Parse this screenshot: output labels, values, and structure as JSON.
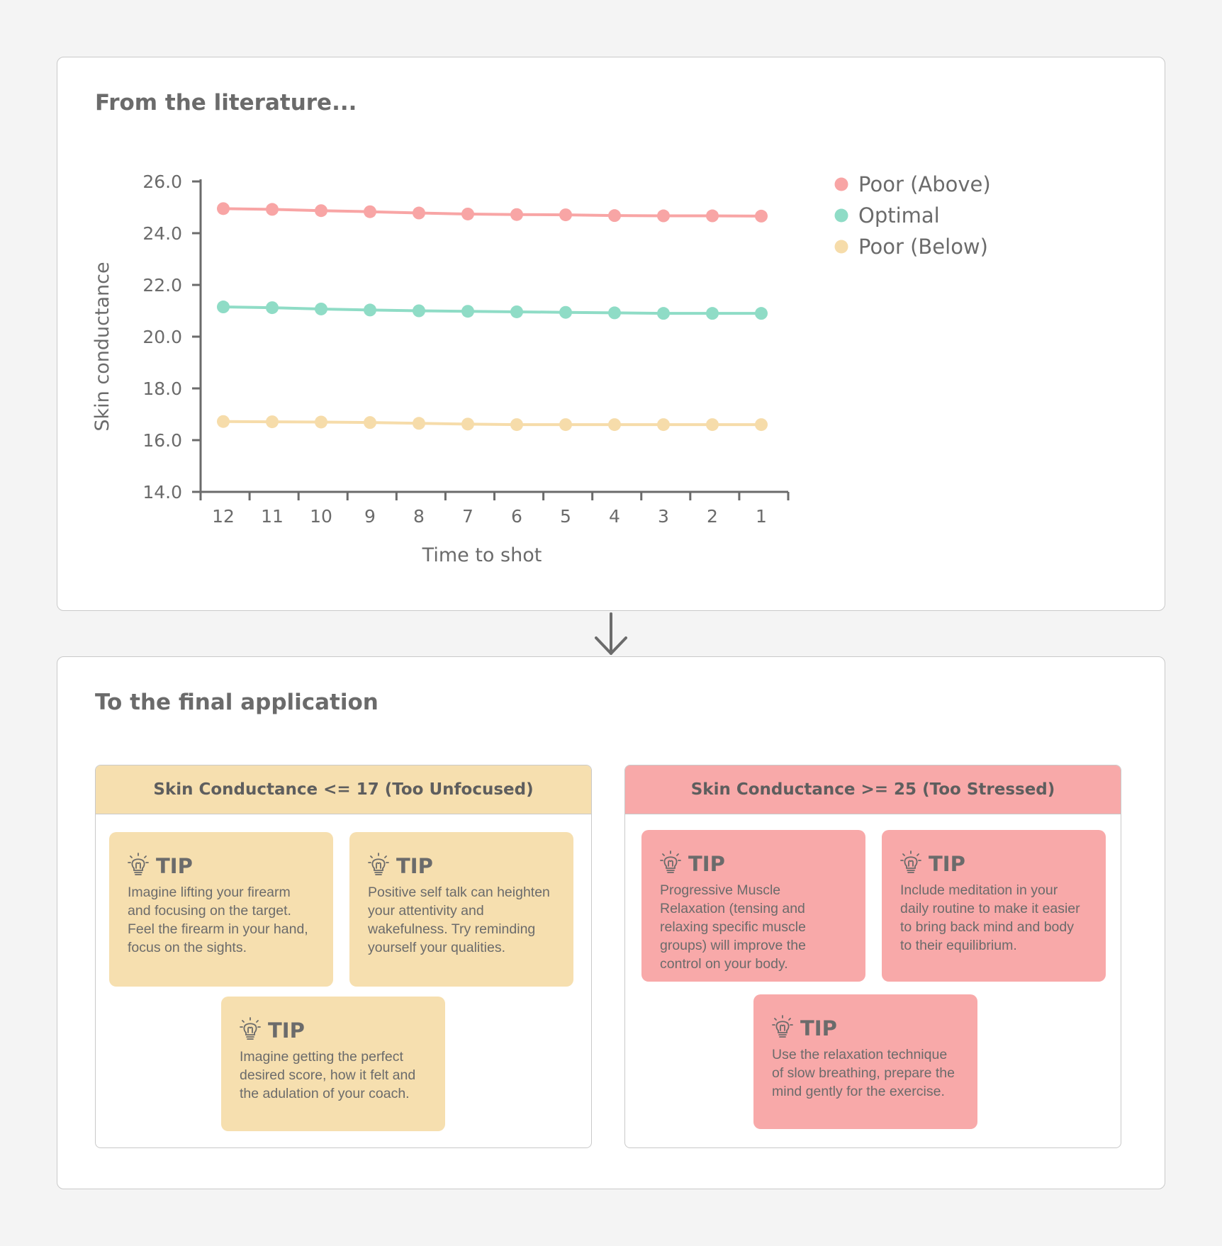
{
  "top_panel": {
    "title": "From the literature..."
  },
  "bottom_panel": {
    "title": "To the final application"
  },
  "chart_data": {
    "type": "line",
    "title": "",
    "xlabel": "Time to shot",
    "ylabel": "Skin conductance",
    "x": [
      "12",
      "11",
      "10",
      "9",
      "8",
      "7",
      "6",
      "5",
      "4",
      "3",
      "2",
      "1"
    ],
    "ylim": [
      14.0,
      26.0
    ],
    "yticks": [
      "26.0",
      "24.0",
      "22.0",
      "20.0",
      "18.0",
      "16.0",
      "14.0"
    ],
    "grid": false,
    "legend_position": "top-right",
    "series": [
      {
        "name": "Poor (Above)",
        "color": "#f8a5a5",
        "values": [
          24.95,
          24.92,
          24.87,
          24.83,
          24.78,
          24.74,
          24.72,
          24.71,
          24.68,
          24.67,
          24.67,
          24.66
        ]
      },
      {
        "name": "Optimal",
        "color": "#8fdcc6",
        "values": [
          21.15,
          21.12,
          21.07,
          21.03,
          21.0,
          20.98,
          20.96,
          20.94,
          20.92,
          20.9,
          20.9,
          20.9
        ]
      },
      {
        "name": "Poor (Below)",
        "color": "#f6dcaa",
        "values": [
          16.72,
          16.71,
          16.7,
          16.68,
          16.65,
          16.62,
          16.6,
          16.6,
          16.6,
          16.6,
          16.6,
          16.6
        ]
      }
    ]
  },
  "groups": {
    "unfocused": {
      "title": "Skin Conductance <= 17  (Too Unfocused)",
      "color": "#f6dfaf",
      "tips": [
        {
          "label": "TIP",
          "text": "Imagine lifting your firearm and focusing on the target. Feel the firearm in your hand, focus on the sights."
        },
        {
          "label": "TIP",
          "text": "Positive self talk can heighten your attentivity and wakefulness. Try reminding yourself your qualities."
        },
        {
          "label": "TIP",
          "text": "Imagine getting the perfect desired score, how it felt and the adulation of your coach."
        }
      ]
    },
    "stressed": {
      "title": "Skin Conductance >= 25 (Too Stressed)",
      "color": "#f8a9a9",
      "tips": [
        {
          "label": "TIP",
          "text": "Progressive Muscle Relaxation (tensing and relaxing specific muscle groups) will improve the control on your body."
        },
        {
          "label": "TIP",
          "text": "Include meditation in your daily routine to make it easier to bring back mind and body to their equilibrium."
        },
        {
          "label": "TIP",
          "text": "Use the relaxation technique of slow breathing, prepare the mind gently for the exercise."
        }
      ]
    }
  },
  "icons": {
    "tip": "lightbulb-icon",
    "flow": "arrow-down-icon"
  }
}
